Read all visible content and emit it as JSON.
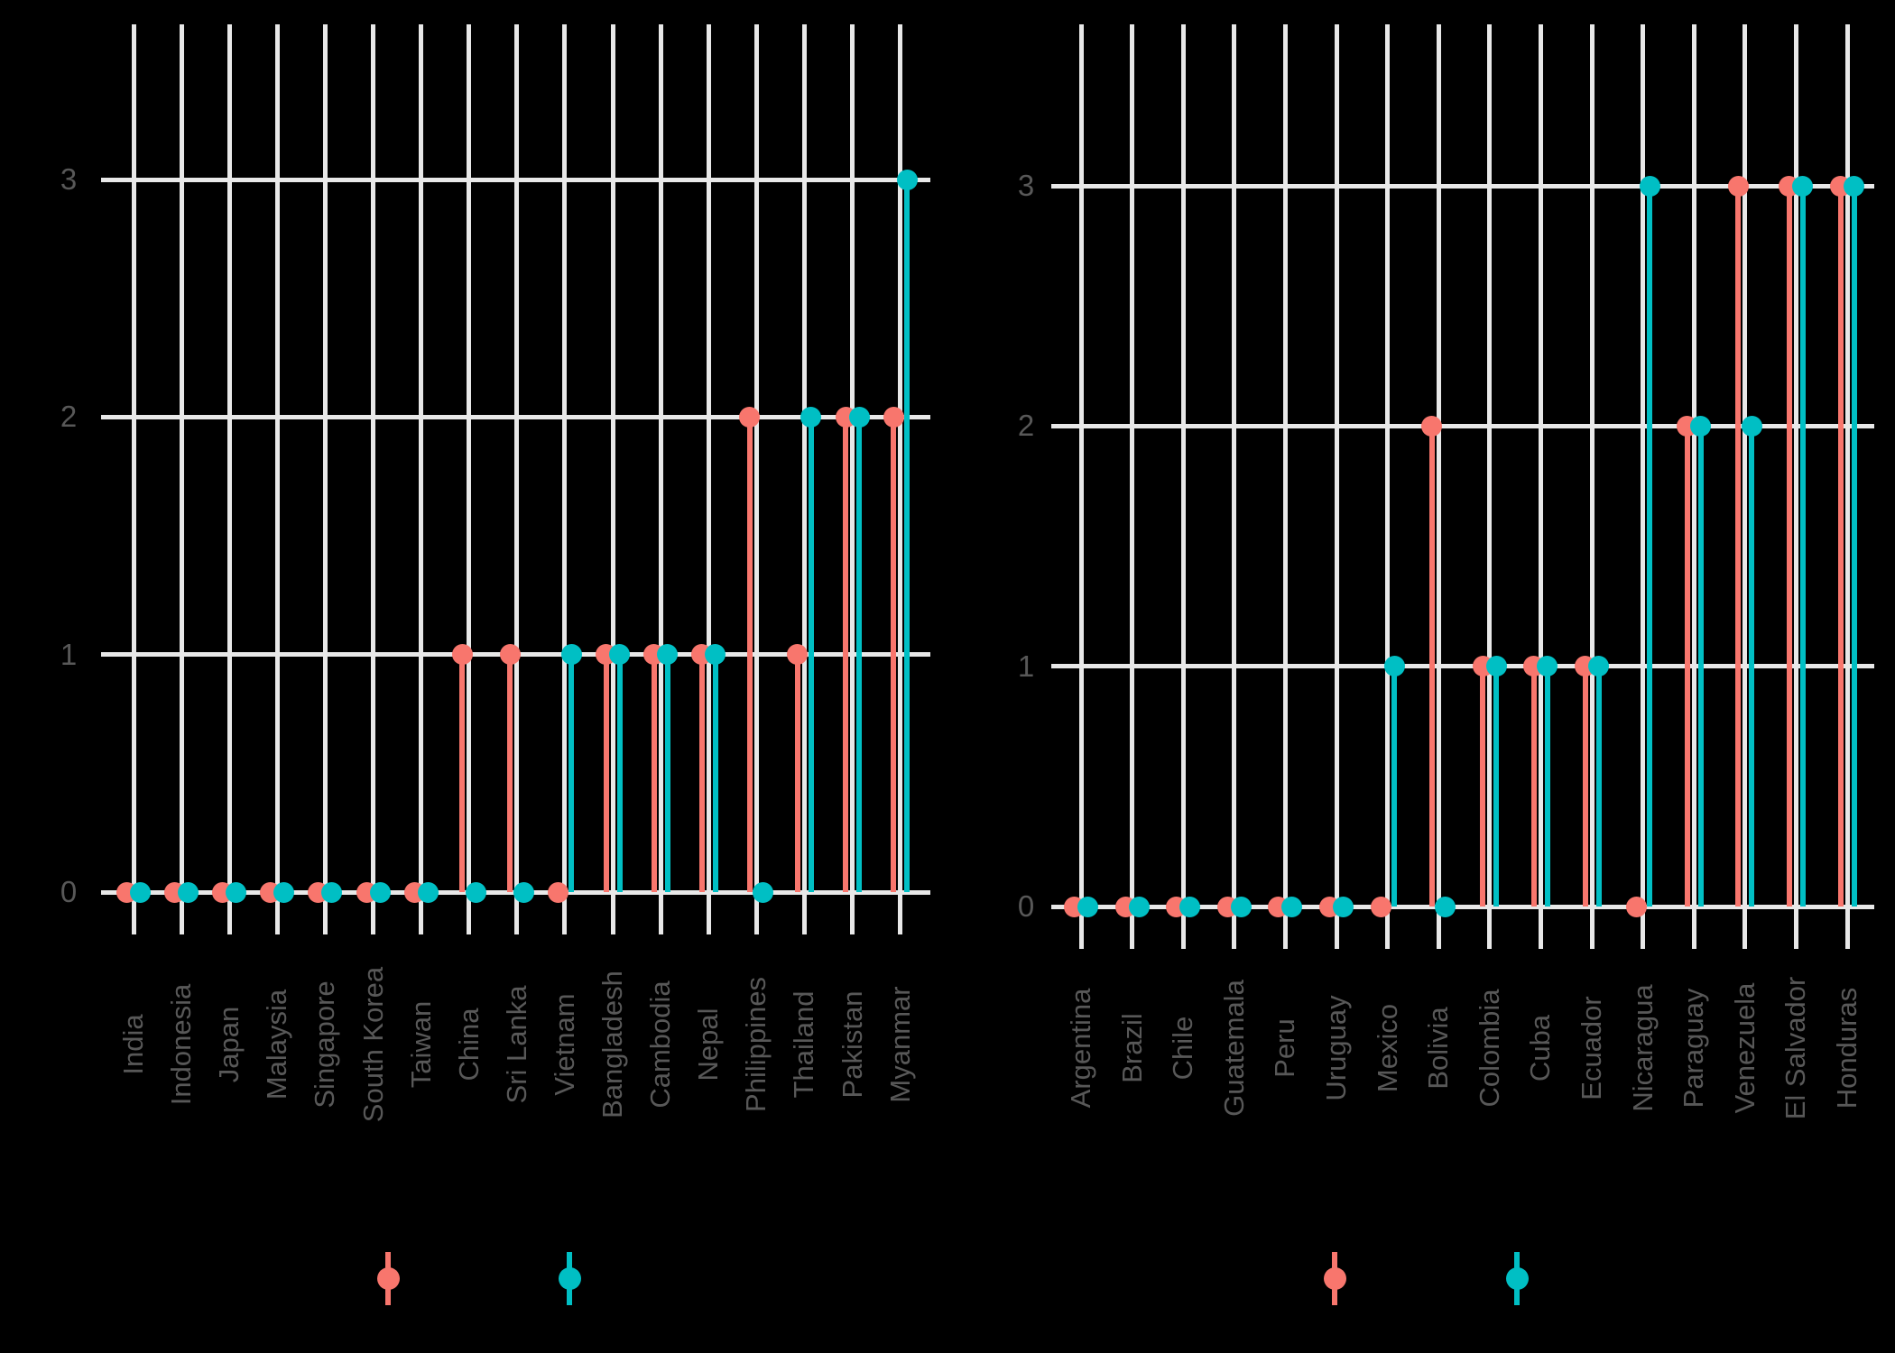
{
  "page": {
    "background": "#000000",
    "grid_color": "#E8E8E8",
    "axis_text_color": "#585858"
  },
  "legend": {
    "items": [
      {
        "label": "",
        "color": "#F8766D"
      },
      {
        "label": "",
        "color": "#00BFC4"
      }
    ]
  },
  "chart_data": [
    {
      "type": "lollipop",
      "title": "",
      "xlabel": "",
      "ylabel": "",
      "grid": true,
      "legend_position": "bottom",
      "categories": [
        "India",
        "Indonesia",
        "Japan",
        "Malaysia",
        "Singapore",
        "South Korea",
        "Taiwan",
        "China",
        "Sri Lanka",
        "Vietnam",
        "Bangladesh",
        "Cambodia",
        "Nepal",
        "Philippines",
        "Thailand",
        "Pakistan",
        "Myanmar"
      ],
      "series": [
        {
          "name": "series-red",
          "color": "#F8766D",
          "values": [
            0,
            0,
            0,
            0,
            0,
            0,
            0,
            1,
            1,
            0,
            1,
            1,
            1,
            2,
            1,
            2,
            2
          ]
        },
        {
          "name": "series-teal",
          "color": "#00BFC4",
          "values": [
            0,
            0,
            0,
            0,
            0,
            0,
            0,
            0,
            0,
            1,
            1,
            1,
            1,
            0,
            2,
            2,
            3
          ]
        }
      ],
      "yticks": [
        0,
        1,
        2,
        3
      ],
      "ylim": [
        0,
        3.65
      ]
    },
    {
      "type": "lollipop",
      "title": "",
      "xlabel": "",
      "ylabel": "",
      "grid": true,
      "legend_position": "bottom",
      "categories": [
        "Argentina",
        "Brazil",
        "Chile",
        "Guatemala",
        "Peru",
        "Uruguay",
        "Mexico",
        "Bolivia",
        "Colombia",
        "Cuba",
        "Ecuador",
        "Nicaragua",
        "Paraguay",
        "Venezuela",
        "El Salvador",
        "Honduras"
      ],
      "series": [
        {
          "name": "series-red",
          "color": "#F8766D",
          "values": [
            0,
            0,
            0,
            0,
            0,
            0,
            0,
            2,
            1,
            1,
            1,
            0,
            2,
            3,
            3,
            3
          ]
        },
        {
          "name": "series-teal",
          "color": "#00BFC4",
          "values": [
            0,
            0,
            0,
            0,
            0,
            0,
            1,
            0,
            1,
            1,
            1,
            3,
            2,
            2,
            3,
            3
          ]
        }
      ],
      "yticks": [
        0,
        1,
        2,
        3
      ],
      "ylim": [
        0,
        3.65
      ]
    }
  ]
}
